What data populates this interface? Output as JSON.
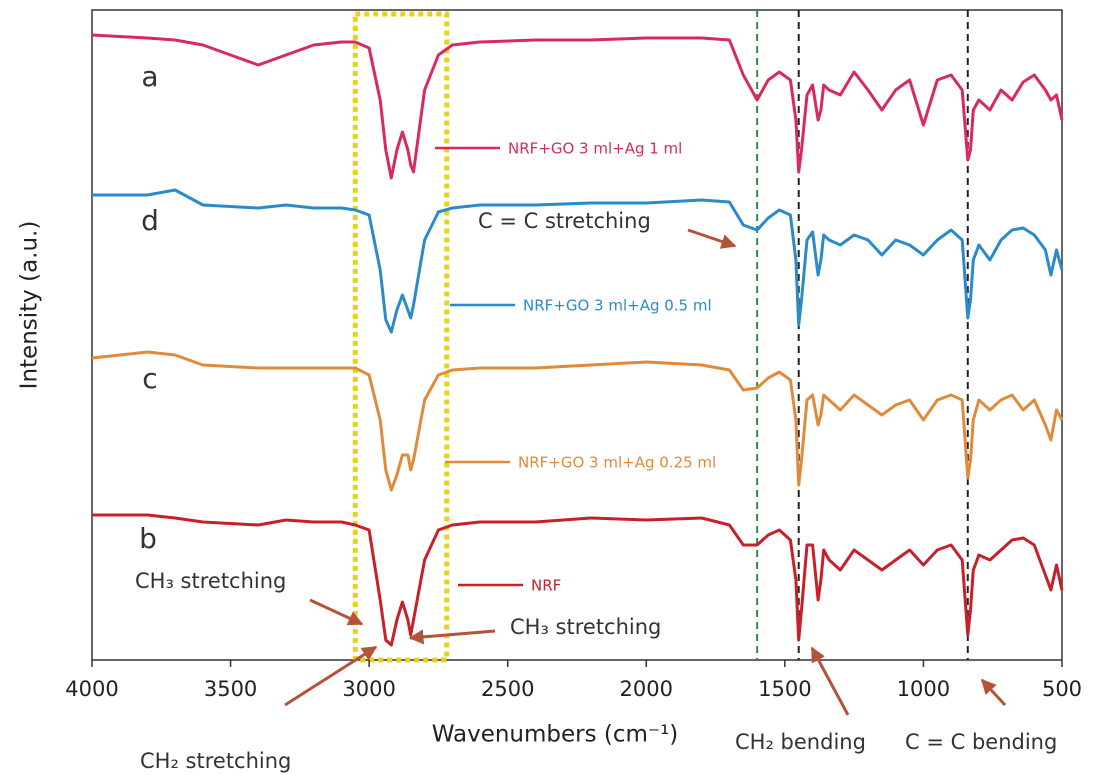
{
  "chart_data": {
    "type": "line",
    "x_label": "Wavenumbers (cm⁻¹)",
    "y_label": "Intensity (a.u.)",
    "xlim": [
      4000,
      500
    ],
    "ylim": [
      0,
      650
    ],
    "xticks": [
      4000,
      3500,
      3000,
      2500,
      2000,
      1500,
      1000,
      500
    ],
    "x": [
      4000,
      3800,
      3700,
      3600,
      3400,
      3300,
      3200,
      3100,
      3050,
      3000,
      2960,
      2940,
      2920,
      2900,
      2880,
      2860,
      2850,
      2840,
      2800,
      2750,
      2700,
      2600,
      2400,
      2200,
      2000,
      1800,
      1700,
      1650,
      1600,
      1560,
      1520,
      1480,
      1460,
      1450,
      1440,
      1420,
      1400,
      1380,
      1370,
      1360,
      1340,
      1300,
      1250,
      1200,
      1150,
      1100,
      1050,
      1000,
      950,
      900,
      860,
      840,
      830,
      820,
      800,
      760,
      720,
      680,
      640,
      600,
      560,
      540,
      520,
      500
    ],
    "series": [
      {
        "name": "NRF+GO 3 ml+Ag 1 ml",
        "label": "a",
        "color": "#d92a5f",
        "values": [
          625,
          622,
          620,
          615,
          595,
          605,
          615,
          618,
          618,
          612,
          560,
          510,
          482,
          510,
          528,
          510,
          495,
          488,
          570,
          605,
          615,
          618,
          620,
          620,
          622,
          622,
          620,
          585,
          560,
          580,
          588,
          580,
          540,
          488,
          510,
          565,
          575,
          540,
          550,
          575,
          570,
          565,
          588,
          570,
          550,
          570,
          580,
          535,
          580,
          585,
          570,
          500,
          510,
          550,
          560,
          550,
          570,
          560,
          578,
          585,
          570,
          560,
          565,
          540
        ]
      },
      {
        "name": "NRF+GO 3 ml+Ag 0.5 ml",
        "label": "d",
        "color": "#2b8bc8",
        "values": [
          465,
          465,
          470,
          455,
          452,
          455,
          452,
          452,
          450,
          445,
          390,
          340,
          328,
          350,
          365,
          350,
          342,
          355,
          420,
          448,
          452,
          455,
          455,
          457,
          457,
          460,
          458,
          435,
          430,
          442,
          450,
          445,
          400,
          335,
          360,
          420,
          428,
          385,
          400,
          425,
          420,
          415,
          425,
          420,
          405,
          420,
          415,
          405,
          420,
          430,
          420,
          342,
          360,
          400,
          415,
          400,
          420,
          430,
          432,
          425,
          410,
          385,
          410,
          390
        ]
      },
      {
        "name": "NRF+GO 3 ml+Ag 0.25 ml",
        "label": "c",
        "color": "#e08a3c",
        "values": [
          302,
          308,
          305,
          295,
          292,
          292,
          292,
          292,
          292,
          285,
          240,
          190,
          170,
          185,
          205,
          205,
          190,
          200,
          260,
          285,
          290,
          292,
          292,
          295,
          298,
          295,
          290,
          270,
          272,
          282,
          288,
          280,
          240,
          175,
          200,
          260,
          265,
          235,
          245,
          265,
          260,
          250,
          265,
          255,
          245,
          255,
          260,
          240,
          260,
          265,
          260,
          182,
          200,
          240,
          260,
          250,
          260,
          265,
          250,
          260,
          235,
          220,
          250,
          240
        ]
      },
      {
        "name": "NRF",
        "label": "b",
        "color": "#c8202a",
        "values": [
          145,
          145,
          142,
          138,
          135,
          140,
          138,
          138,
          135,
          130,
          60,
          20,
          15,
          40,
          58,
          40,
          25,
          40,
          100,
          130,
          135,
          138,
          138,
          142,
          140,
          142,
          135,
          115,
          115,
          125,
          130,
          120,
          80,
          20,
          50,
          115,
          115,
          60,
          80,
          110,
          100,
          90,
          110,
          100,
          90,
          100,
          110,
          95,
          110,
          115,
          100,
          25,
          50,
          90,
          105,
          100,
          110,
          120,
          122,
          115,
          85,
          70,
          95,
          70
        ]
      }
    ],
    "reference_lines": [
      {
        "x": 1600,
        "color": "#2e8b3e"
      },
      {
        "x": 1450,
        "color": "#222222"
      },
      {
        "x": 840,
        "color": "#222222"
      }
    ],
    "highlight": {
      "x": [
        3050,
        2720
      ],
      "color": "#e8d21c"
    },
    "annotations": [
      "CH₃ stretching",
      "CH₃ stretching",
      "CH₂ stretching",
      "C = C stretching",
      "CH₂ bending",
      "C = C bending"
    ]
  }
}
